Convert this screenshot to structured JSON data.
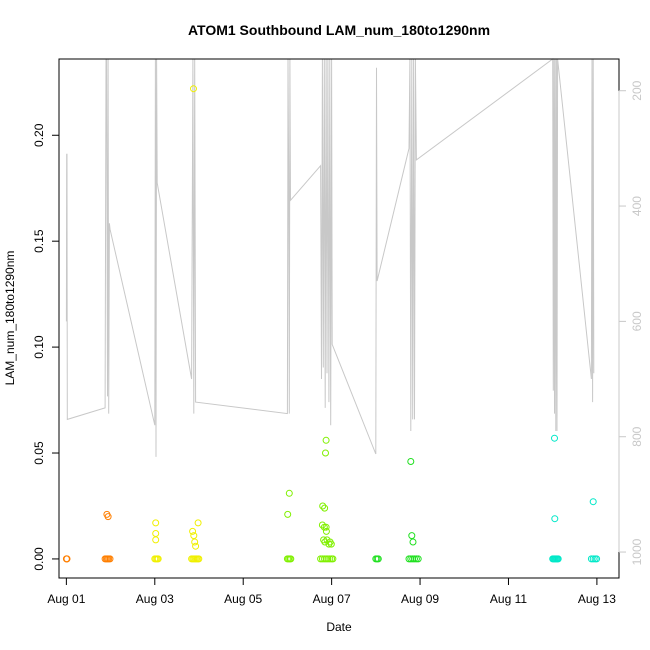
{
  "chart_data": {
    "type": "scatter",
    "title": "ATOM1 Southbound LAM_num_180to1290nm",
    "xlabel": "Date",
    "ylabel": "LAM_num_180to1290nm",
    "xlim": [
      "2021-07-31T20:00",
      "2021-08-13T12:00"
    ],
    "ylim": [
      -0.009,
      0.236
    ],
    "x_ticks": [
      {
        "value": "2021-08-01T00:00",
        "label": "Aug 01"
      },
      {
        "value": "2021-08-03T00:00",
        "label": "Aug 03"
      },
      {
        "value": "2021-08-05T00:00",
        "label": "Aug 05"
      },
      {
        "value": "2021-08-07T00:00",
        "label": "Aug 07"
      },
      {
        "value": "2021-08-09T00:00",
        "label": "Aug 09"
      },
      {
        "value": "2021-08-11T00:00",
        "label": "Aug 11"
      },
      {
        "value": "2021-08-13T00:00",
        "label": "Aug 13"
      }
    ],
    "y_ticks": [
      {
        "value": 0.0,
        "label": "0.00"
      },
      {
        "value": 0.05,
        "label": "0.05"
      },
      {
        "value": 0.1,
        "label": "0.10"
      },
      {
        "value": 0.15,
        "label": "0.15"
      },
      {
        "value": 0.2,
        "label": "0.20"
      }
    ],
    "right_axis": {
      "ylim": [
        1045,
        145
      ],
      "ticks": [
        {
          "value": 200,
          "label": "200"
        },
        {
          "value": 400,
          "label": "400"
        },
        {
          "value": 600,
          "label": "600"
        },
        {
          "value": 800,
          "label": "800"
        },
        {
          "value": 1000,
          "label": "1000"
        }
      ],
      "color": "#c8c8c8"
    },
    "point_series": [
      {
        "color": "#ff7f00",
        "points": [
          [
            "2021-08-01T00:00",
            0.0
          ],
          [
            "2021-08-01T00:10",
            0.0
          ],
          [
            "2021-08-01T00:20",
            0.0
          ],
          [
            "2021-08-01T21:00",
            0.0
          ],
          [
            "2021-08-01T21:40",
            0.0
          ],
          [
            "2021-08-01T22:20",
            0.0
          ],
          [
            "2021-08-01T23:00",
            0.0
          ],
          [
            "2021-08-01T23:40",
            0.0
          ],
          [
            "2021-08-01T22:00",
            0.021
          ],
          [
            "2021-08-01T22:40",
            0.02
          ]
        ]
      },
      {
        "color": "#f0f000",
        "points": [
          [
            "2021-08-03T00:00",
            0.0
          ],
          [
            "2021-08-03T00:40",
            0.0
          ],
          [
            "2021-08-03T01:20",
            0.0
          ],
          [
            "2021-08-03T01:50",
            0.0
          ],
          [
            "2021-08-03T00:30",
            0.017
          ],
          [
            "2021-08-03T00:30",
            0.012
          ],
          [
            "2021-08-03T00:30",
            0.009
          ],
          [
            "2021-08-03T20:00",
            0.0
          ],
          [
            "2021-08-03T20:40",
            0.0
          ],
          [
            "2021-08-03T21:20",
            0.0
          ],
          [
            "2021-08-03T22:00",
            0.0
          ],
          [
            "2021-08-03T22:40",
            0.0
          ],
          [
            "2021-08-03T23:20",
            0.0
          ],
          [
            "2021-08-03T23:55",
            0.0
          ],
          [
            "2021-08-03T20:30",
            0.013
          ],
          [
            "2021-08-03T21:10",
            0.011
          ],
          [
            "2021-08-03T21:40",
            0.008
          ],
          [
            "2021-08-03T22:10",
            0.006
          ],
          [
            "2021-08-03T23:30",
            0.017
          ],
          [
            "2021-08-03T21:00",
            0.222
          ]
        ]
      },
      {
        "color": "#80f000",
        "points": [
          [
            "2021-08-06T00:00",
            0.0
          ],
          [
            "2021-08-06T00:40",
            0.0
          ],
          [
            "2021-08-06T01:20",
            0.0
          ],
          [
            "2021-08-06T01:50",
            0.0
          ],
          [
            "2021-08-06T00:10",
            0.021
          ],
          [
            "2021-08-06T01:00",
            0.031
          ],
          [
            "2021-08-06T18:00",
            0.0
          ],
          [
            "2021-08-06T19:00",
            0.0
          ],
          [
            "2021-08-06T20:00",
            0.0
          ],
          [
            "2021-08-06T21:00",
            0.0
          ],
          [
            "2021-08-06T22:00",
            0.0
          ],
          [
            "2021-08-06T23:00",
            0.0
          ],
          [
            "2021-08-07T00:00",
            0.0
          ],
          [
            "2021-08-07T00:40",
            0.0
          ],
          [
            "2021-08-06T19:10",
            0.025
          ],
          [
            "2021-08-06T20:10",
            0.024
          ],
          [
            "2021-08-06T19:00",
            0.016
          ],
          [
            "2021-08-06T21:00",
            0.015
          ],
          [
            "2021-08-06T21:10",
            0.013
          ],
          [
            "2021-08-06T20:00",
            0.015
          ],
          [
            "2021-08-06T19:40",
            0.009
          ],
          [
            "2021-08-06T20:20",
            0.008
          ],
          [
            "2021-08-06T21:30",
            0.009
          ],
          [
            "2021-08-06T22:30",
            0.007
          ],
          [
            "2021-08-06T23:10",
            0.008
          ],
          [
            "2021-08-06T23:50",
            0.007
          ],
          [
            "2021-08-06T21:00",
            0.056
          ],
          [
            "2021-08-06T20:40",
            0.05
          ]
        ]
      },
      {
        "color": "#20e020",
        "points": [
          [
            "2021-08-08T00:00",
            0.0
          ],
          [
            "2021-08-08T00:40",
            0.0
          ],
          [
            "2021-08-08T01:20",
            0.0
          ],
          [
            "2021-08-08T18:00",
            0.0
          ],
          [
            "2021-08-08T19:00",
            0.0
          ],
          [
            "2021-08-08T20:00",
            0.0
          ],
          [
            "2021-08-08T21:00",
            0.0
          ],
          [
            "2021-08-08T22:00",
            0.0
          ],
          [
            "2021-08-08T23:00",
            0.0
          ],
          [
            "2021-08-08T19:00",
            0.046
          ],
          [
            "2021-08-08T19:30",
            0.011
          ],
          [
            "2021-08-08T20:10",
            0.008
          ]
        ]
      },
      {
        "color": "#00e8c8",
        "points": [
          [
            "2021-08-12T00:00",
            0.0
          ],
          [
            "2021-08-12T00:30",
            0.0
          ],
          [
            "2021-08-12T01:00",
            0.0
          ],
          [
            "2021-08-12T01:30",
            0.0
          ],
          [
            "2021-08-12T02:00",
            0.0
          ],
          [
            "2021-08-12T02:30",
            0.0
          ],
          [
            "2021-08-12T03:00",
            0.0
          ],
          [
            "2021-08-12T01:00",
            0.057
          ],
          [
            "2021-08-12T01:10",
            0.019
          ],
          [
            "2021-08-12T21:00",
            0.0
          ],
          [
            "2021-08-12T22:00",
            0.0
          ],
          [
            "2021-08-12T23:00",
            0.0
          ],
          [
            "2021-08-12T23:50",
            0.0
          ],
          [
            "2021-08-12T22:00",
            0.027
          ]
        ]
      }
    ],
    "line_series": {
      "color": "#c8c8c8",
      "axis": "right",
      "points": [
        [
          "2021-08-01T00:00",
          600
        ],
        [
          "2021-08-01T00:10",
          310
        ],
        [
          "2021-08-01T00:20",
          310
        ],
        [
          "2021-08-01T00:30",
          770
        ],
        [
          "2021-08-01T21:00",
          750
        ],
        [
          "2021-08-01T21:30",
          145
        ],
        [
          "2021-08-01T21:50",
          145
        ],
        [
          "2021-08-01T22:00",
          330
        ],
        [
          "2021-08-01T22:20",
          730
        ],
        [
          "2021-08-01T22:40",
          145
        ],
        [
          "2021-08-01T23:00",
          760
        ],
        [
          "2021-08-01T23:20",
          430
        ],
        [
          "2021-08-01T23:40",
          440
        ],
        [
          "2021-08-03T00:00",
          780
        ],
        [
          "2021-08-03T00:20",
          145
        ],
        [
          "2021-08-03T00:40",
          835
        ],
        [
          "2021-08-03T01:00",
          145
        ],
        [
          "2021-08-03T01:20",
          360
        ],
        [
          "2021-08-03T20:00",
          700
        ],
        [
          "2021-08-03T20:40",
          145
        ],
        [
          "2021-08-03T21:10",
          760
        ],
        [
          "2021-08-03T21:40",
          145
        ],
        [
          "2021-08-03T22:10",
          740
        ],
        [
          "2021-08-06T00:00",
          760
        ],
        [
          "2021-08-06T00:20",
          145
        ],
        [
          "2021-08-06T00:40",
          330
        ],
        [
          "2021-08-06T01:00",
          760
        ],
        [
          "2021-08-06T01:20",
          145
        ],
        [
          "2021-08-06T01:40",
          390
        ],
        [
          "2021-08-06T18:00",
          330
        ],
        [
          "2021-08-06T18:30",
          700
        ],
        [
          "2021-08-06T19:00",
          145
        ],
        [
          "2021-08-06T19:30",
          680
        ],
        [
          "2021-08-06T20:00",
          145
        ],
        [
          "2021-08-06T20:30",
          750
        ],
        [
          "2021-08-06T21:00",
          145
        ],
        [
          "2021-08-06T21:30",
          690
        ],
        [
          "2021-08-06T22:00",
          145
        ],
        [
          "2021-08-06T22:30",
          740
        ],
        [
          "2021-08-06T23:00",
          145
        ],
        [
          "2021-08-06T23:30",
          780
        ],
        [
          "2021-08-07T00:00",
          145
        ],
        [
          "2021-08-07T00:20",
          640
        ],
        [
          "2021-08-08T00:00",
          830
        ],
        [
          "2021-08-08T00:20",
          160
        ],
        [
          "2021-08-08T00:40",
          530
        ],
        [
          "2021-08-08T18:00",
          300
        ],
        [
          "2021-08-08T18:30",
          145
        ],
        [
          "2021-08-08T19:00",
          790
        ],
        [
          "2021-08-08T19:30",
          145
        ],
        [
          "2021-08-08T20:00",
          770
        ],
        [
          "2021-08-08T20:30",
          145
        ],
        [
          "2021-08-08T21:00",
          770
        ],
        [
          "2021-08-08T21:30",
          145
        ],
        [
          "2021-08-08T22:00",
          320
        ],
        [
          "2021-08-12T00:00",
          145
        ],
        [
          "2021-08-12T00:20",
          720
        ],
        [
          "2021-08-12T00:40",
          145
        ],
        [
          "2021-08-12T01:00",
          760
        ],
        [
          "2021-08-12T01:20",
          145
        ],
        [
          "2021-08-12T01:40",
          790
        ],
        [
          "2021-08-12T02:00",
          145
        ],
        [
          "2021-08-12T02:20",
          790
        ],
        [
          "2021-08-12T02:40",
          145
        ],
        [
          "2021-08-12T21:00",
          700
        ],
        [
          "2021-08-12T21:20",
          145
        ],
        [
          "2021-08-12T21:40",
          740
        ],
        [
          "2021-08-12T22:00",
          145
        ],
        [
          "2021-08-12T22:20",
          690
        ]
      ]
    },
    "grid": false,
    "legend": "none"
  }
}
